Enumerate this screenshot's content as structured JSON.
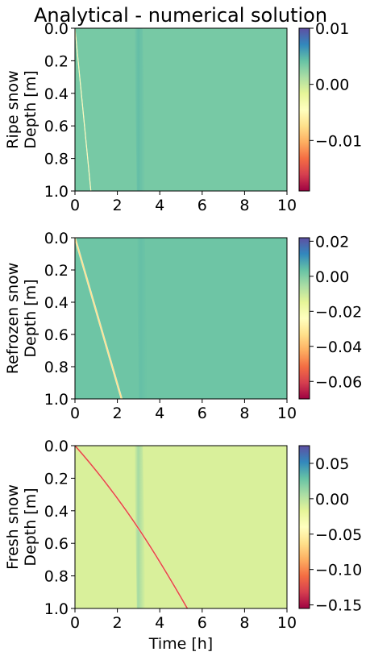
{
  "figure": {
    "title": "Analytical - numerical solution"
  },
  "chart_data": [
    {
      "type": "heatmap",
      "panel": "ripe",
      "ylabel_lines": [
        "Ripe snow",
        "Depth [m]"
      ],
      "xlabel": "",
      "xlim": [
        0,
        10
      ],
      "ylim": [
        1.0,
        0.0
      ],
      "x_ticks": [
        "0",
        "2",
        "4",
        "6",
        "8",
        "10"
      ],
      "y_ticks": [
        "0.0",
        "0.2",
        "0.4",
        "0.6",
        "0.8",
        "1.0"
      ],
      "colorbar": {
        "range": [
          -0.019,
          0.01
        ],
        "tick_values": [
          0.01,
          0.0,
          -0.01
        ],
        "tick_labels": [
          "0.01",
          "0.00",
          "−0.01"
        ]
      },
      "field": {
        "background": 0.0035,
        "front_start_time": 0.0,
        "front_end_time": 0.75,
        "front_value": -0.005,
        "stripe_time": 3.0,
        "stripe_value": 0.0045
      }
    },
    {
      "type": "heatmap",
      "panel": "refrozen",
      "ylabel_lines": [
        "Refrozen snow",
        "Depth [m]"
      ],
      "xlabel": "",
      "xlim": [
        0,
        10
      ],
      "ylim": [
        1.0,
        0.0
      ],
      "x_ticks": [
        "0",
        "2",
        "4",
        "6",
        "8",
        "10"
      ],
      "y_ticks": [
        "0.0",
        "0.2",
        "0.4",
        "0.6",
        "0.8",
        "1.0"
      ],
      "colorbar": {
        "range": [
          -0.07,
          0.022
        ],
        "tick_values": [
          0.02,
          0.0,
          -0.02,
          -0.04,
          -0.06
        ],
        "tick_labels": [
          "0.02",
          "0.00",
          "−0.02",
          "−0.04",
          "−0.06"
        ]
      },
      "field": {
        "background": 0.0025,
        "front_start_time": 0.0,
        "front_end_time": 2.2,
        "front_value": -0.032,
        "stripe_time": 3.1,
        "stripe_value": 0.004
      }
    },
    {
      "type": "heatmap",
      "panel": "fresh",
      "ylabel_lines": [
        "Fresh snow",
        "Depth [m]"
      ],
      "xlabel": "Time [h]",
      "xlim": [
        0,
        10
      ],
      "ylim": [
        1.0,
        0.0
      ],
      "x_ticks": [
        "0",
        "2",
        "4",
        "6",
        "8",
        "10"
      ],
      "y_ticks": [
        "0.0",
        "0.2",
        "0.4",
        "0.6",
        "0.8",
        "1.0"
      ],
      "colorbar": {
        "range": [
          -0.155,
          0.075
        ],
        "tick_values": [
          0.05,
          0.0,
          -0.05,
          -0.1,
          -0.15
        ],
        "tick_labels": [
          "0.05",
          "0.00",
          "−0.05",
          "−0.10",
          "−0.15"
        ]
      },
      "field": {
        "background": -0.012,
        "front_start_time": 0.0,
        "front_end_time": 5.3,
        "front_value": -0.12,
        "stripe_time": 3.0,
        "stripe_value": 0.01
      }
    }
  ]
}
